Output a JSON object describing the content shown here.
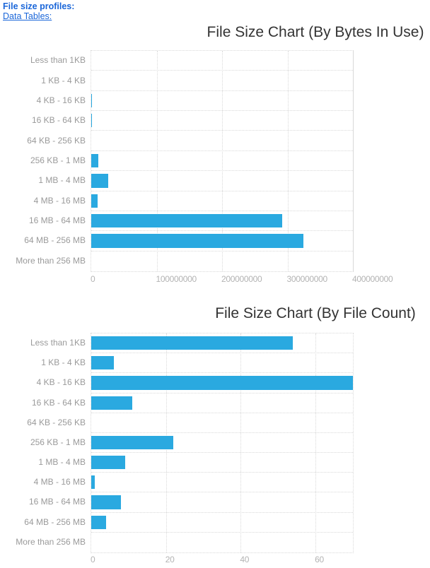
{
  "header": {
    "profiles_label": "File size profiles:",
    "data_tables_link": "Data Tables:"
  },
  "colors": {
    "bar": "#2aa9e0",
    "grid": "#d9d9d9",
    "category_label": "#9a9a9a",
    "tick_label": "#b3b3b3",
    "title": "#333333",
    "link": "#1a66d9"
  },
  "chart_data": [
    {
      "type": "bar",
      "orientation": "horizontal",
      "title": "File Size Chart (By Bytes In Use)",
      "categories": [
        "Less than 1KB",
        "1 KB - 4 KB",
        "4 KB - 16 KB",
        "16 KB - 64 KB",
        "64 KB - 256 KB",
        "256 KB - 1 MB",
        "1 MB - 4 MB",
        "4 MB - 16 MB",
        "16 MB - 64 MB",
        "64 MB - 256 MB",
        "More than 256 MB"
      ],
      "values": [
        25000,
        15000,
        1000000,
        450000,
        0,
        11000000,
        26000000,
        10000000,
        292000000,
        324000000,
        0
      ],
      "xlabel": "",
      "ylabel": "",
      "xlim": [
        0,
        400000000
      ],
      "xticks": [
        0,
        100000000,
        200000000,
        300000000,
        400000000
      ],
      "xtick_labels": [
        "0",
        "100000000",
        "200000000",
        "300000000",
        "400000000"
      ],
      "grid": "dotted",
      "legend": false
    },
    {
      "type": "bar",
      "orientation": "horizontal",
      "title": "File Size Chart (By File Count)",
      "categories": [
        "Less than 1KB",
        "1 KB - 4 KB",
        "4 KB - 16 KB",
        "16 KB - 64 KB",
        "64 KB - 256 KB",
        "256 KB - 1 MB",
        "1 MB - 4 MB",
        "4 MB - 16 MB",
        "16 MB - 64 MB",
        "64 MB - 256 MB",
        "More than 256 MB"
      ],
      "values": [
        54,
        6,
        70,
        11,
        0,
        22,
        9,
        1,
        8,
        4,
        0
      ],
      "xlabel": "",
      "ylabel": "",
      "xlim": [
        0,
        70
      ],
      "xticks": [
        0,
        20,
        40,
        60
      ],
      "xtick_labels": [
        "0",
        "20",
        "40",
        "60"
      ],
      "grid": "dotted",
      "legend": false
    }
  ]
}
